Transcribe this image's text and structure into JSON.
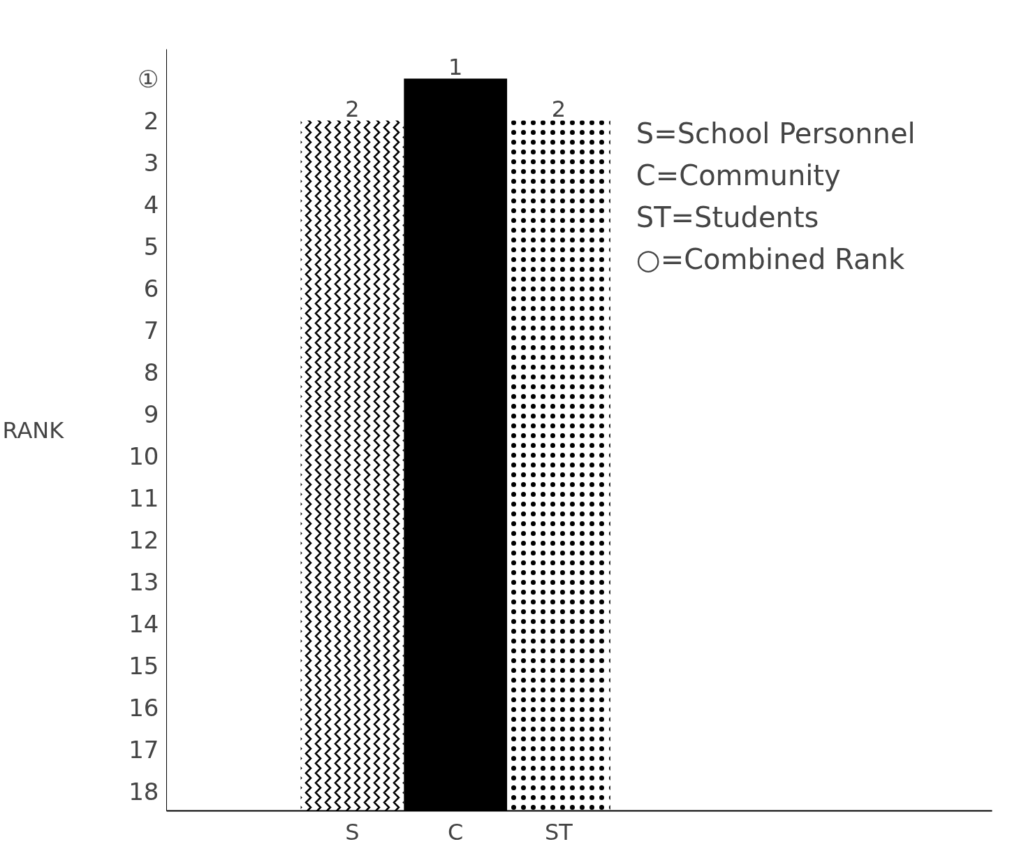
{
  "chart_data": {
    "type": "bar",
    "ylabel": "RANK",
    "categories": [
      "S",
      "C",
      "ST"
    ],
    "base": [
      18.45,
      18.45,
      18.45
    ],
    "values": [
      -16.45,
      -17.45,
      -16.45
    ],
    "value_labels": [
      "2",
      "1",
      "2"
    ],
    "colors": [
      "#000000",
      "#000000",
      "#000000"
    ],
    "ylim": [
      18.45,
      0.3
    ],
    "yticks": [
      {
        "value": 1,
        "label": "①"
      },
      2,
      3,
      4,
      5,
      6,
      7,
      8,
      9,
      10,
      11,
      12,
      13,
      14,
      15,
      16,
      17,
      18
    ],
    "grid": false,
    "annotations": [
      "S=School Personnel",
      "C=Community",
      "ST=Students",
      "○=Combined Rank"
    ]
  }
}
